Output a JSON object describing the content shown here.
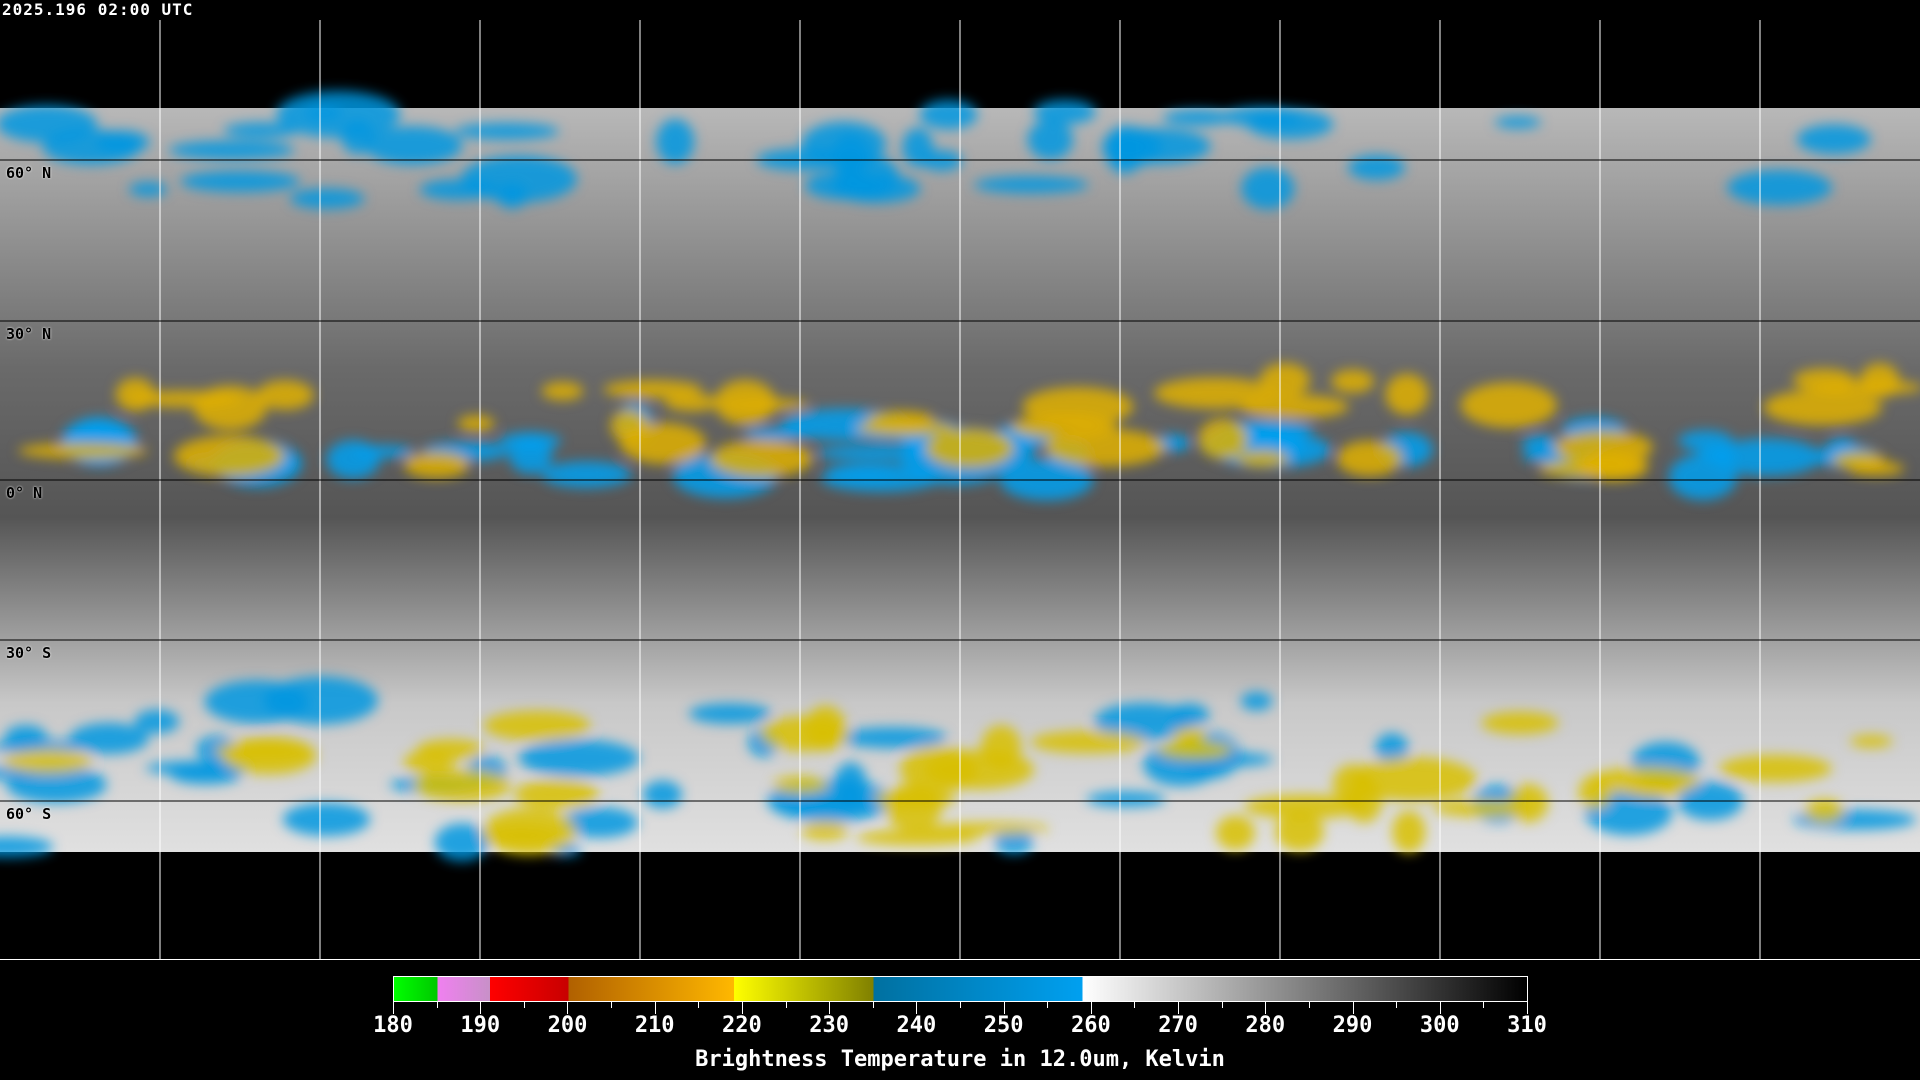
{
  "header": {
    "timestamp": "2025.196 02:00 UTC"
  },
  "map": {
    "projection": "equirectangular",
    "grid_lines": true,
    "lat_labels": [
      "60° N",
      "30° N",
      "0° N",
      "30° S",
      "60° S"
    ]
  },
  "colorbar": {
    "title": "Brightness Temperature in 12.0um, Kelvin",
    "ticks": [
      "180",
      "190",
      "200",
      "210",
      "220",
      "230",
      "240",
      "250",
      "260",
      "270",
      "280",
      "290",
      "300",
      "310"
    ],
    "range": [
      180,
      310
    ],
    "segments": [
      {
        "from": 180,
        "to": 185,
        "colors": [
          "#00ff00",
          "#00c800"
        ]
      },
      {
        "from": 185,
        "to": 191,
        "colors": [
          "#f080f0",
          "#c890c8"
        ]
      },
      {
        "from": 191,
        "to": 200,
        "colors": [
          "#ff0000",
          "#c80000"
        ]
      },
      {
        "from": 200,
        "to": 219,
        "colors": [
          "#b06000",
          "#ffb800"
        ]
      },
      {
        "from": 219,
        "to": 235,
        "colors": [
          "#ffff00",
          "#808000"
        ]
      },
      {
        "from": 235,
        "to": 259,
        "colors": [
          "#0070a0",
          "#00a0f0"
        ]
      },
      {
        "from": 259,
        "to": 310,
        "colors": [
          "#ffffff",
          "#000000"
        ]
      }
    ]
  }
}
